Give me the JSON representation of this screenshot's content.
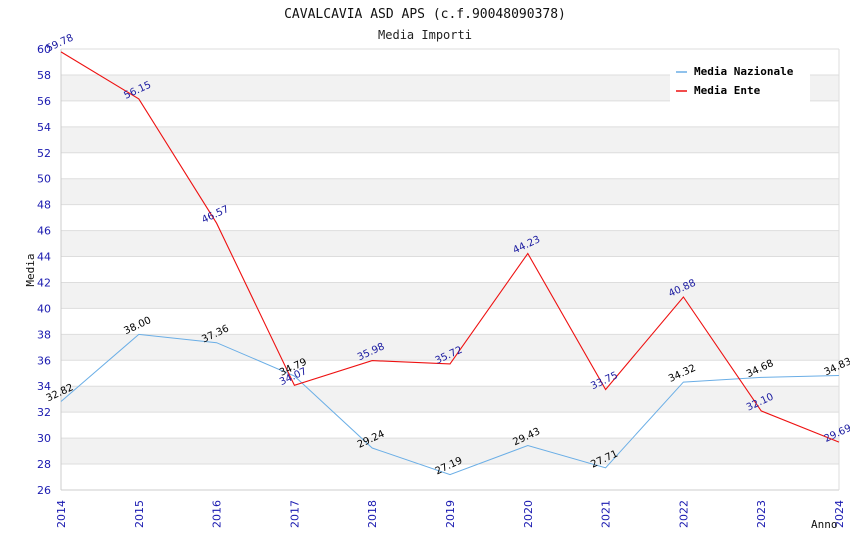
{
  "title": "CAVALCAVIA ASD APS (c.f.90048090378)",
  "subtitle": "Media Importi",
  "chart_data": {
    "type": "line",
    "title": "CAVALCAVIA ASD APS (c.f.90048090378)",
    "subtitle": "Media Importi",
    "xlabel": "Anno",
    "ylabel": "Media",
    "categories": [
      "2014",
      "2015",
      "2016",
      "2017",
      "2018",
      "2019",
      "2020",
      "2021",
      "2022",
      "2023",
      "2024"
    ],
    "ylim": [
      26,
      60
    ],
    "yticks": [
      26,
      28,
      30,
      32,
      34,
      36,
      38,
      40,
      42,
      44,
      46,
      48,
      50,
      52,
      54,
      56,
      58,
      60
    ],
    "grid": true,
    "legend_position": "top-right",
    "series": [
      {
        "name": "Media Nazionale",
        "color": "#6aaee6",
        "label_color": "#000000",
        "values": [
          32.82,
          38.0,
          37.36,
          34.79,
          29.24,
          27.19,
          29.43,
          27.71,
          34.32,
          34.68,
          34.83
        ],
        "labels": [
          "32.82",
          "38.00",
          "37.36",
          "34.79",
          "29.24",
          "27.19",
          "29.43",
          "27.71",
          "34.32",
          "34.68",
          "34.83"
        ]
      },
      {
        "name": "Media Ente",
        "color": "#ee1111",
        "label_color": "#1a1aa0",
        "values": [
          59.78,
          56.15,
          46.57,
          34.07,
          35.98,
          35.72,
          44.23,
          33.75,
          40.88,
          32.1,
          29.69
        ],
        "labels": [
          "59.78",
          "56.15",
          "46.57",
          "34.07",
          "35.98",
          "35.72",
          "44.23",
          "33.75",
          "40.88",
          "32.10",
          "29.69"
        ]
      }
    ],
    "colors": {
      "tick_label": "#1a1ab0",
      "grid_band": "#f2f2f2",
      "grid_line": "#dddddd",
      "axis": "#cccccc"
    }
  }
}
